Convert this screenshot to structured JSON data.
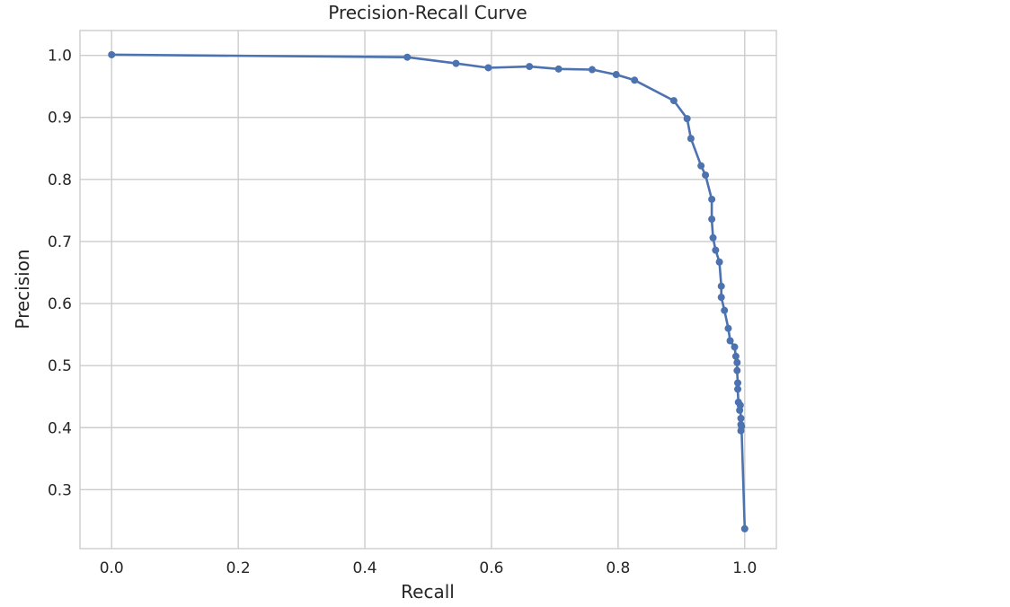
{
  "chart_data": {
    "type": "line",
    "title": "Precision-Recall Curve",
    "xlabel": "Recall",
    "ylabel": "Precision",
    "xlim": [
      -0.05,
      1.05
    ],
    "ylim": [
      0.205,
      1.04
    ],
    "xticks": [
      "0.0",
      "0.2",
      "0.4",
      "0.6",
      "0.8",
      "1.0"
    ],
    "yticks": [
      "0.3",
      "0.4",
      "0.5",
      "0.6",
      "0.7",
      "0.8",
      "0.9",
      "1.0"
    ],
    "grid": true,
    "color": "#4c72b0",
    "series": [
      {
        "x": [
          0.0,
          0.467,
          0.544,
          0.595,
          0.66,
          0.706,
          0.759,
          0.797,
          0.826,
          0.888,
          0.909,
          0.915,
          0.931,
          0.938,
          0.948,
          0.948,
          0.95,
          0.954,
          0.96,
          0.963,
          0.963,
          0.968,
          0.974,
          0.977,
          0.984,
          0.986,
          0.988,
          0.988,
          0.989,
          0.989,
          0.99,
          0.992,
          0.993,
          0.994,
          0.994,
          0.994,
          0.995,
          1.0
        ],
        "y": [
          1.001,
          0.997,
          0.987,
          0.98,
          0.982,
          0.978,
          0.977,
          0.969,
          0.96,
          0.927,
          0.898,
          0.866,
          0.822,
          0.807,
          0.768,
          0.736,
          0.706,
          0.686,
          0.667,
          0.628,
          0.61,
          0.589,
          0.56,
          0.54,
          0.53,
          0.515,
          0.505,
          0.492,
          0.472,
          0.462,
          0.441,
          0.428,
          0.436,
          0.415,
          0.405,
          0.395,
          0.402,
          0.237
        ]
      }
    ]
  }
}
